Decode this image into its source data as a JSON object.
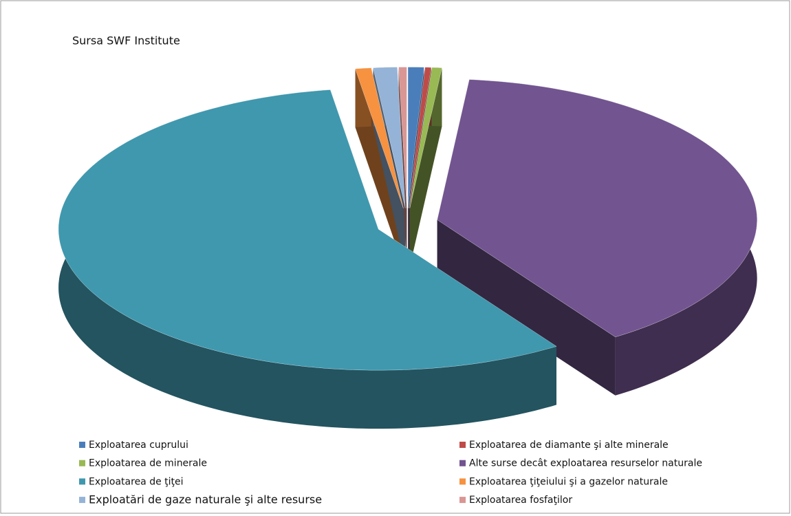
{
  "chart_data": {
    "type": "pie",
    "title": "Sursa SWF Institute",
    "categories": [
      "Exploatarea cuprului",
      "Exploatarea de diamante  şi alte minerale",
      "Exploatarea de minerale",
      "Alte surse decât exploatarea resurselor naturale",
      "Exploatarea de ţiţei",
      "Exploatarea ţiţeiului şi a gazelor naturale",
      "Exploatări de gaze naturale  şi alte resurse",
      "Exploatarea fosfaţilor"
    ],
    "values": [
      0.8,
      0.3,
      0.5,
      39,
      57,
      0.8,
      1.2,
      0.4
    ],
    "colors": [
      "#4a7ebb",
      "#be4b48",
      "#98b954",
      "#725490",
      "#3f98ae",
      "#f69240",
      "#95b3d7",
      "#d99694"
    ],
    "legend": "bottom"
  }
}
